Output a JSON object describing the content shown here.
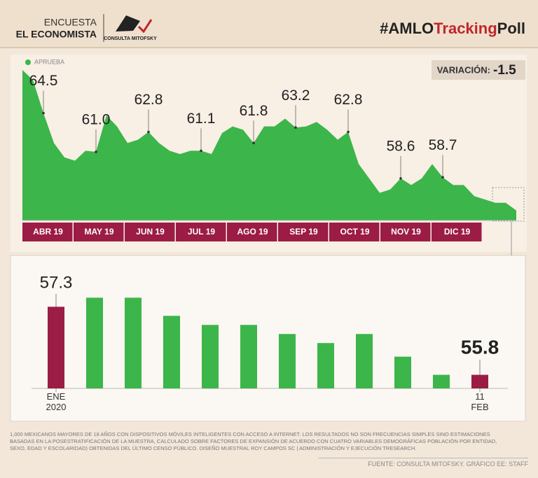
{
  "header": {
    "line1": "ENCUESTA",
    "line2": "EL ECONOMISTA",
    "logo": "CONSULTA MITOFSKY",
    "hashtag": [
      "#AMLO",
      "Tracking",
      "Poll"
    ]
  },
  "variation": {
    "label": "VARIACIÓN:",
    "value": "-1.5"
  },
  "chart_data": [
    {
      "type": "area",
      "periods": [
        "ABR 19",
        "MAY 19",
        "JUN 19",
        "JUL 19",
        "AGO 19",
        "SEP 19",
        "OCT 19",
        "NOV 19",
        "DIC 19"
      ],
      "series": [
        {
          "name": "APRUEBA",
          "color": "#3cb54a",
          "values": [
            68.4,
            67.5,
            64.5,
            61.8,
            60.5,
            60.2,
            61.1,
            61.0,
            64.3,
            63.3,
            61.8,
            62.1,
            62.8,
            61.8,
            61.1,
            60.8,
            61.1,
            61.1,
            60.8,
            62.7,
            63.3,
            63.0,
            61.8,
            63.3,
            63.3,
            64.0,
            63.2,
            63.3,
            63.7,
            63.0,
            62.1,
            62.8,
            59.9,
            58.6,
            57.3,
            57.6,
            58.6,
            58.0,
            58.6,
            59.9,
            58.7,
            58.0,
            58.0,
            57.0,
            56.7,
            56.4,
            56.4,
            55.7
          ],
          "value_labels": [
            null,
            null,
            "64.5",
            null,
            null,
            null,
            null,
            "61.0",
            null,
            null,
            null,
            null,
            "62.8",
            null,
            null,
            null,
            null,
            "61.1",
            null,
            null,
            null,
            null,
            "61.8",
            null,
            null,
            null,
            "63.2",
            null,
            null,
            null,
            null,
            "62.8",
            null,
            null,
            null,
            null,
            "58.6",
            null,
            null,
            null,
            "58.7",
            null,
            null,
            null,
            null,
            null,
            null,
            null
          ]
        }
      ],
      "ylim": [
        54.8,
        68.4
      ]
    },
    {
      "type": "bar",
      "categories": [
        "ENE 2020",
        null,
        null,
        null,
        null,
        null,
        null,
        null,
        null,
        null,
        null,
        "11 FEB"
      ],
      "values": [
        57.3,
        57.5,
        57.5,
        57.1,
        56.9,
        56.9,
        56.7,
        56.5,
        56.7,
        56.2,
        55.8,
        55.8
      ],
      "colors": [
        "#9b1c45",
        "#3cb54a",
        "#3cb54a",
        "#3cb54a",
        "#3cb54a",
        "#3cb54a",
        "#3cb54a",
        "#3cb54a",
        "#3cb54a",
        "#3cb54a",
        "#3cb54a",
        "#9b1c45"
      ],
      "ylim": [
        55.5,
        58.2
      ]
    }
  ],
  "footnote": "1,000 MEXICANOS MAYORES DE 18 AÑOS CON DISPOSITIVOS MÓVILES INTELIGENTES CON ACCESO A INTERNET. LOS RESULTADOS NO SON FRECUENCIAS SIMPLES SINO ESTIMACIONES BASADAS EN LA POSESTRATIFICACIÓN DE LA MUESTRA, CALCULADO SOBRE FACTORES DE EXPANSIÓN DE ACUERDO CON CUATRO VARIABLES DEMOGRÁFICAS POBLACIÓN POR ENTIDAD, SEXO, EDAD Y ESCOLARIDAD) OBTENIDAS DEL ÚLTIMO CENSO PÚBLICO. DISEÑO MUESTRAL ROY CAMPOS SC | ADMINISTRACIÓN Y EJECUCIÓN TRESEARCH.",
  "source": "FUENTE: CONSULTA MITOFSKY. GRÁFICO EE: STAFF"
}
